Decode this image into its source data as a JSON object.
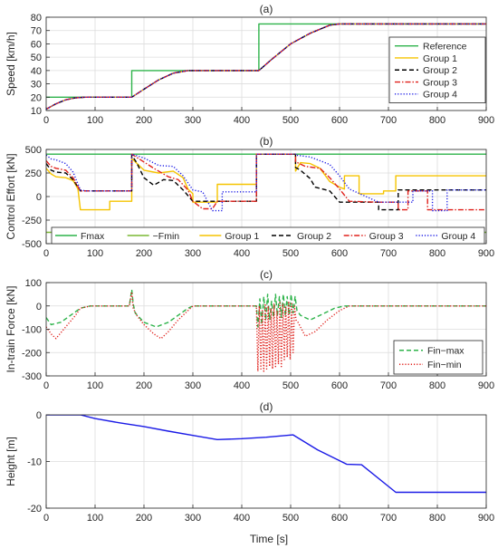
{
  "figure": {
    "xlabel": "Time [s]"
  },
  "colors": {
    "reference": "#2db34a",
    "group1": "#f5c400",
    "group2": "#000000",
    "group3": "#e0201b",
    "group4": "#1a1ae6",
    "fmax": "#2db34a",
    "fmin": "#7ab833",
    "height": "#1a1ae6",
    "fin_max": "#2db34a",
    "fin_min": "#e0201b",
    "axis": "#262626",
    "grid": "#dcdcdc"
  },
  "chart_data": [
    {
      "panel": "(a)",
      "type": "line",
      "title": "(a)",
      "xlabel": "",
      "ylabel": "Speed [km/h]",
      "xlim": [
        0,
        900
      ],
      "ylim": [
        10,
        80
      ],
      "xticks": [
        0,
        100,
        200,
        300,
        400,
        500,
        600,
        700,
        800,
        900
      ],
      "yticks": [
        10,
        20,
        30,
        40,
        50,
        60,
        70,
        80
      ],
      "grid": true,
      "legend_position": "bottom-right",
      "series": [
        {
          "name": "Reference",
          "style": "solid",
          "color_key": "reference",
          "x": [
            0,
            175,
            175,
            435,
            435,
            900
          ],
          "y": [
            20,
            20,
            40,
            40,
            75,
            75
          ]
        },
        {
          "name": "Group 1",
          "style": "solid",
          "color_key": "group1",
          "x": [
            0,
            20,
            40,
            60,
            80,
            175,
            200,
            230,
            260,
            290,
            435,
            460,
            500,
            540,
            580,
            600,
            900
          ],
          "y": [
            11,
            15,
            18,
            19.5,
            20,
            20,
            26,
            33,
            38,
            40,
            40,
            48,
            60,
            68,
            74,
            75,
            75
          ]
        },
        {
          "name": "Group 2",
          "style": "dashed",
          "color_key": "group2",
          "x": [
            0,
            20,
            40,
            60,
            80,
            175,
            200,
            230,
            260,
            290,
            435,
            460,
            500,
            540,
            580,
            600,
            900
          ],
          "y": [
            11,
            15,
            18,
            19.5,
            20,
            20,
            26,
            33,
            38,
            40,
            40,
            48,
            60,
            68,
            74,
            75,
            75
          ]
        },
        {
          "name": "Group 3",
          "style": "dashdot",
          "color_key": "group3",
          "x": [
            0,
            20,
            40,
            60,
            80,
            175,
            200,
            230,
            260,
            290,
            435,
            460,
            500,
            540,
            580,
            600,
            900
          ],
          "y": [
            11,
            15,
            18,
            19.5,
            20,
            20,
            26,
            33,
            38,
            40,
            40,
            48,
            60,
            68,
            74,
            75,
            75
          ]
        },
        {
          "name": "Group 4",
          "style": "dotted",
          "color_key": "group4",
          "x": [
            0,
            20,
            40,
            60,
            80,
            175,
            200,
            230,
            260,
            290,
            435,
            460,
            500,
            540,
            580,
            600,
            900
          ],
          "y": [
            11,
            15,
            18,
            19.5,
            20,
            20,
            26,
            33,
            38,
            40,
            40,
            48,
            60,
            68,
            74,
            75,
            75
          ]
        }
      ]
    },
    {
      "panel": "(b)",
      "type": "line",
      "title": "(b)",
      "xlabel": "",
      "ylabel": "Control Effort [kN]",
      "xlim": [
        0,
        900
      ],
      "ylim": [
        -500,
        500
      ],
      "xticks": [
        0,
        100,
        200,
        300,
        400,
        500,
        600,
        700,
        800,
        900
      ],
      "yticks": [
        -500,
        -250,
        0,
        250,
        500
      ],
      "grid": true,
      "legend_position": "bottom",
      "series": [
        {
          "name": "Fmax",
          "style": "solid",
          "color_key": "fmax",
          "x": [
            0,
            900
          ],
          "y": [
            450,
            450
          ]
        },
        {
          "name": "−Fmin",
          "style": "solid",
          "color_key": "fmin",
          "x": [
            0,
            900
          ],
          "y": [
            -380,
            -380
          ]
        },
        {
          "name": "Group 1",
          "style": "solid",
          "color_key": "group1",
          "x": [
            0,
            10,
            20,
            40,
            55,
            65,
            70,
            130,
            130,
            175,
            175,
            180,
            200,
            230,
            260,
            280,
            290,
            300,
            300,
            330,
            345,
            350,
            350,
            430,
            430,
            510,
            510,
            520,
            540,
            560,
            580,
            600,
            610,
            610,
            640,
            640,
            650,
            690,
            690,
            715,
            715,
            900
          ],
          "y": [
            300,
            240,
            210,
            200,
            170,
            80,
            -140,
            -140,
            -50,
            -50,
            400,
            380,
            280,
            250,
            270,
            200,
            80,
            30,
            -60,
            -60,
            -60,
            -60,
            130,
            130,
            450,
            450,
            270,
            360,
            350,
            300,
            160,
            100,
            80,
            220,
            220,
            30,
            30,
            30,
            60,
            60,
            220,
            220
          ]
        },
        {
          "name": "Group 2",
          "style": "dashed",
          "color_key": "group2",
          "x": [
            0,
            10,
            20,
            40,
            55,
            70,
            80,
            130,
            175,
            175,
            185,
            200,
            220,
            240,
            260,
            280,
            300,
            350,
            430,
            430,
            510,
            510,
            520,
            540,
            550,
            580,
            600,
            640,
            680,
            680,
            720,
            720,
            900
          ],
          "y": [
            350,
            280,
            260,
            250,
            180,
            60,
            60,
            60,
            60,
            440,
            360,
            200,
            120,
            180,
            170,
            70,
            -50,
            -50,
            -50,
            450,
            450,
            310,
            280,
            190,
            100,
            60,
            -60,
            -60,
            -60,
            -140,
            -140,
            70,
            70
          ]
        },
        {
          "name": "Group 3",
          "style": "dashdot",
          "color_key": "group3",
          "x": [
            0,
            10,
            20,
            40,
            55,
            70,
            80,
            130,
            175,
            175,
            190,
            220,
            250,
            270,
            290,
            300,
            320,
            340,
            350,
            430,
            430,
            510,
            510,
            530,
            560,
            580,
            600,
            620,
            680,
            720,
            720,
            740,
            740,
            780,
            780,
            900
          ],
          "y": [
            380,
            320,
            300,
            280,
            200,
            60,
            60,
            60,
            60,
            450,
            400,
            300,
            210,
            180,
            70,
            -50,
            -130,
            -130,
            -50,
            -50,
            450,
            450,
            370,
            320,
            300,
            200,
            80,
            -50,
            -60,
            -60,
            -140,
            -140,
            60,
            60,
            -140,
            -140
          ]
        },
        {
          "name": "Group 4",
          "style": "dotted",
          "color_key": "group4",
          "x": [
            0,
            10,
            20,
            40,
            55,
            70,
            80,
            130,
            175,
            175,
            200,
            230,
            260,
            280,
            300,
            320,
            340,
            350,
            360,
            360,
            400,
            430,
            430,
            510,
            510,
            540,
            580,
            600,
            620,
            680,
            700,
            750,
            750,
            790,
            790,
            820,
            820,
            900
          ],
          "y": [
            440,
            400,
            390,
            350,
            260,
            70,
            60,
            60,
            60,
            450,
            410,
            330,
            320,
            220,
            70,
            50,
            -150,
            -150,
            -150,
            50,
            50,
            50,
            450,
            450,
            440,
            420,
            340,
            220,
            80,
            -60,
            -60,
            -60,
            60,
            60,
            -150,
            -150,
            70,
            70
          ]
        }
      ]
    },
    {
      "panel": "(c)",
      "type": "line",
      "title": "(c)",
      "xlabel": "",
      "ylabel": "In-train Force [kN]",
      "xlim": [
        0,
        900
      ],
      "ylim": [
        -300,
        100
      ],
      "xticks": [
        0,
        100,
        200,
        300,
        400,
        500,
        600,
        700,
        800,
        900
      ],
      "yticks": [
        -300,
        -200,
        -100,
        0,
        100
      ],
      "grid": true,
      "legend_position": "bottom-right",
      "series": [
        {
          "name": "Fin−max",
          "style": "dashed",
          "color_key": "fin_max",
          "x": [
            0,
            10,
            30,
            50,
            70,
            90,
            170,
            175,
            178,
            182,
            200,
            225,
            250,
            270,
            290,
            300,
            430,
            433,
            437,
            441,
            445,
            449,
            453,
            457,
            461,
            465,
            469,
            473,
            477,
            481,
            485,
            489,
            493,
            497,
            501,
            505,
            509,
            513,
            520,
            540,
            560,
            590,
            610,
            620,
            900
          ],
          "y": [
            -50,
            -80,
            -70,
            -40,
            -10,
            0,
            0,
            70,
            10,
            -30,
            -70,
            -90,
            -70,
            -40,
            -10,
            0,
            0,
            -90,
            30,
            -80,
            40,
            -60,
            50,
            -60,
            20,
            -50,
            50,
            -40,
            40,
            -50,
            50,
            -40,
            40,
            -40,
            50,
            -30,
            40,
            -20,
            -40,
            -60,
            -40,
            -10,
            0,
            0,
            0
          ]
        },
        {
          "name": "Fin−min",
          "style": "dotted",
          "color_key": "fin_min",
          "x": [
            0,
            10,
            20,
            40,
            60,
            70,
            90,
            170,
            175,
            178,
            185,
            200,
            220,
            235,
            250,
            270,
            290,
            300,
            430,
            433,
            436,
            439,
            442,
            445,
            448,
            451,
            454,
            457,
            460,
            463,
            466,
            469,
            472,
            475,
            478,
            481,
            484,
            487,
            490,
            493,
            496,
            499,
            502,
            505,
            508,
            511,
            515,
            530,
            550,
            575,
            600,
            620,
            900
          ],
          "y": [
            -90,
            -120,
            -140,
            -90,
            -40,
            -10,
            0,
            0,
            60,
            -10,
            -40,
            -80,
            -120,
            -140,
            -110,
            -60,
            -20,
            0,
            0,
            -280,
            0,
            -270,
            -20,
            -280,
            10,
            -270,
            0,
            -260,
            -10,
            -270,
            10,
            -260,
            -20,
            -250,
            20,
            -260,
            10,
            -230,
            0,
            -220,
            20,
            -230,
            10,
            -200,
            0,
            -60,
            -70,
            -130,
            -110,
            -60,
            -20,
            0,
            0
          ]
        }
      ]
    },
    {
      "panel": "(d)",
      "type": "line",
      "title": "(d)",
      "xlabel": "Time [s]",
      "ylabel": "Height [m]",
      "xlim": [
        0,
        900
      ],
      "ylim": [
        -20,
        0
      ],
      "xticks": [
        0,
        100,
        200,
        300,
        400,
        500,
        600,
        700,
        800,
        900
      ],
      "yticks": [
        -20,
        -10,
        0
      ],
      "grid": true,
      "legend_position": "none",
      "series": [
        {
          "name": "",
          "style": "solid",
          "color_key": "height",
          "x": [
            0,
            70,
            100,
            150,
            200,
            250,
            300,
            350,
            400,
            450,
            505,
            555,
            615,
            645,
            715,
            900
          ],
          "y": [
            0,
            0,
            -0.8,
            -1.7,
            -2.5,
            -3.5,
            -4.4,
            -5.3,
            -5.1,
            -4.8,
            -4.3,
            -7.5,
            -10.6,
            -10.7,
            -16.6,
            -16.6
          ]
        }
      ]
    }
  ]
}
